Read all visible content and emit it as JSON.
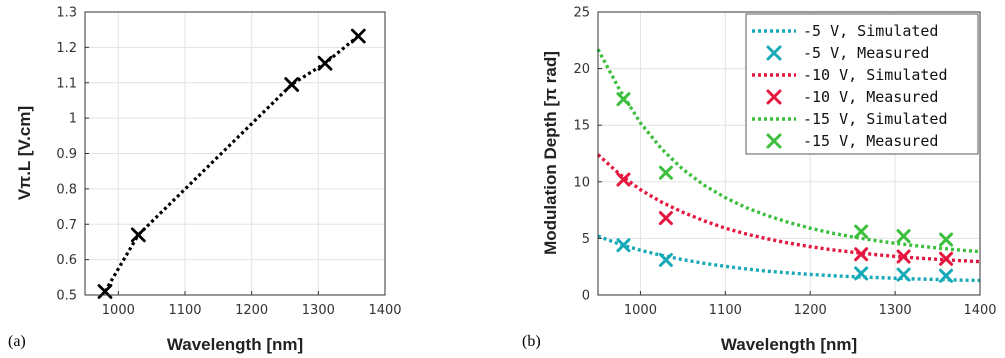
{
  "chart_data": [
    {
      "type": "line",
      "panel_label": "(a)",
      "xlabel": "Wavelength [nm]",
      "ylabel": "Vπ.L [V.cm]",
      "xlim": [
        950,
        1400
      ],
      "ylim": [
        0.5,
        1.3
      ],
      "xticks": [
        1000,
        1100,
        1200,
        1300,
        1400
      ],
      "yticks": [
        0.5,
        0.6,
        0.7,
        0.8,
        0.9,
        1,
        1.1,
        1.2,
        1.3
      ],
      "ytick_labels": [
        "0.5",
        "0.6",
        "0.7",
        "0.8",
        "0.9",
        "1",
        "1.1",
        "1.2",
        "1.3"
      ],
      "grid": true,
      "series": [
        {
          "color": "#000000",
          "line": "dotted",
          "marker": "x",
          "x": [
            980,
            1030,
            1260,
            1310,
            1360
          ],
          "y": [
            0.51,
            0.67,
            1.095,
            1.155,
            1.232
          ]
        }
      ]
    },
    {
      "type": "line",
      "panel_label": "(b)",
      "xlabel": "Wavelength [nm]",
      "ylabel": "Modulation Depth [π rad]",
      "xlim": [
        950,
        1400
      ],
      "ylim": [
        0,
        25
      ],
      "xticks": [
        1000,
        1100,
        1200,
        1300,
        1400
      ],
      "yticks": [
        0,
        5,
        10,
        15,
        20,
        25
      ],
      "grid": true,
      "legend_position": "top-right",
      "simulated_x": [
        950,
        975,
        1000,
        1025,
        1050,
        1075,
        1100,
        1125,
        1150,
        1175,
        1200,
        1225,
        1250,
        1275,
        1300,
        1325,
        1350,
        1375,
        1400
      ],
      "series": [
        {
          "name": "-5 V, Simulated",
          "color": "#16a9b8",
          "line": "dotted",
          "y": [
            5.2,
            4.5,
            3.95,
            3.5,
            3.12,
            2.8,
            2.53,
            2.3,
            2.1,
            1.95,
            1.82,
            1.71,
            1.62,
            1.55,
            1.48,
            1.42,
            1.37,
            1.32,
            1.28
          ]
        },
        {
          "name": "-5 V, Measured",
          "color": "#16a9b8",
          "marker": "x",
          "x": [
            980,
            1030,
            1260,
            1310,
            1360
          ],
          "y": [
            4.4,
            3.1,
            1.9,
            1.8,
            1.7
          ]
        },
        {
          "name": "-10 V, Simulated",
          "color": "#e5173f",
          "line": "dotted",
          "y": [
            12.4,
            10.7,
            9.3,
            8.2,
            7.3,
            6.55,
            5.9,
            5.38,
            4.95,
            4.58,
            4.27,
            4.0,
            3.78,
            3.58,
            3.41,
            3.27,
            3.15,
            3.04,
            2.95
          ]
        },
        {
          "name": "-10 V, Measured",
          "color": "#e5173f",
          "marker": "x",
          "x": [
            980,
            1030,
            1260,
            1310,
            1360
          ],
          "y": [
            10.2,
            6.8,
            3.6,
            3.4,
            3.2
          ]
        },
        {
          "name": "-15 V, Simulated",
          "color": "#3cbf3c",
          "line": "dotted",
          "y": [
            21.7,
            18.2,
            15.2,
            12.9,
            11.1,
            9.7,
            8.6,
            7.7,
            7.0,
            6.4,
            5.9,
            5.48,
            5.13,
            4.83,
            4.57,
            4.35,
            4.15,
            3.98,
            3.83
          ]
        },
        {
          "name": "-15 V, Measured",
          "color": "#3cbf3c",
          "marker": "x",
          "x": [
            980,
            1030,
            1260,
            1310,
            1360
          ],
          "y": [
            17.3,
            10.8,
            5.6,
            5.2,
            4.9
          ]
        }
      ]
    }
  ]
}
